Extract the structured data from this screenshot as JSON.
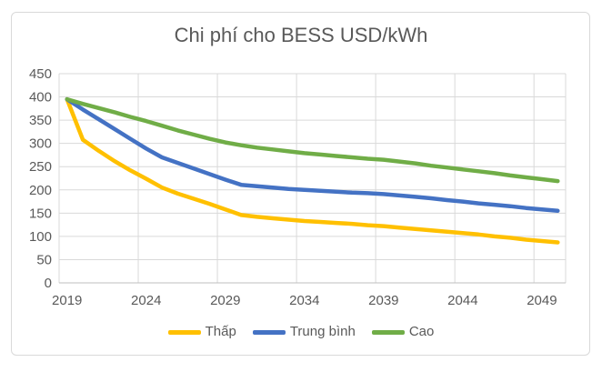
{
  "chart": {
    "title": "Chi phí cho BESS USD/kWh"
  },
  "chart_data": {
    "type": "line",
    "title": "Chi phí cho BESS USD/kWh",
    "xlabel": "",
    "ylabel": "",
    "grid": true,
    "legend_position": "bottom",
    "ylim": [
      0,
      450
    ],
    "yticks": [
      0,
      50,
      100,
      150,
      200,
      250,
      300,
      350,
      400,
      450
    ],
    "xticks": [
      2019,
      2024,
      2029,
      2034,
      2039,
      2044,
      2049
    ],
    "x": [
      2019,
      2020,
      2021,
      2022,
      2023,
      2024,
      2025,
      2026,
      2027,
      2028,
      2029,
      2030,
      2031,
      2032,
      2033,
      2034,
      2035,
      2036,
      2037,
      2038,
      2039,
      2040,
      2041,
      2042,
      2043,
      2044,
      2045,
      2046,
      2047,
      2048,
      2049,
      2050
    ],
    "axis_text_color": "#595959",
    "gridline_color": "#d9d9d9",
    "axis_line_color": "#bfbfbf",
    "series": [
      {
        "name": "Thấp",
        "color": "#FFC000",
        "values": [
          395,
          308,
          284,
          262,
          242,
          224,
          205,
          192,
          181,
          170,
          158,
          146,
          142,
          139,
          136,
          133,
          131,
          129,
          127,
          124,
          122,
          119,
          116,
          113,
          110,
          107,
          104,
          100,
          97,
          93,
          90,
          87
        ]
      },
      {
        "name": "Trung bình",
        "color": "#4472C4",
        "values": [
          395,
          373,
          352,
          331,
          310,
          289,
          270,
          258,
          246,
          234,
          222,
          211,
          208,
          205,
          202,
          200,
          198,
          196,
          194,
          193,
          191,
          188,
          185,
          182,
          178,
          175,
          171,
          168,
          165,
          161,
          158,
          155
        ]
      },
      {
        "name": "Cao",
        "color": "#70AD47",
        "values": [
          395,
          385,
          376,
          367,
          357,
          348,
          338,
          328,
          319,
          310,
          302,
          296,
          291,
          287,
          283,
          279,
          276,
          273,
          270,
          267,
          265,
          261,
          257,
          252,
          248,
          244,
          240,
          236,
          231,
          227,
          223,
          219
        ]
      }
    ]
  }
}
